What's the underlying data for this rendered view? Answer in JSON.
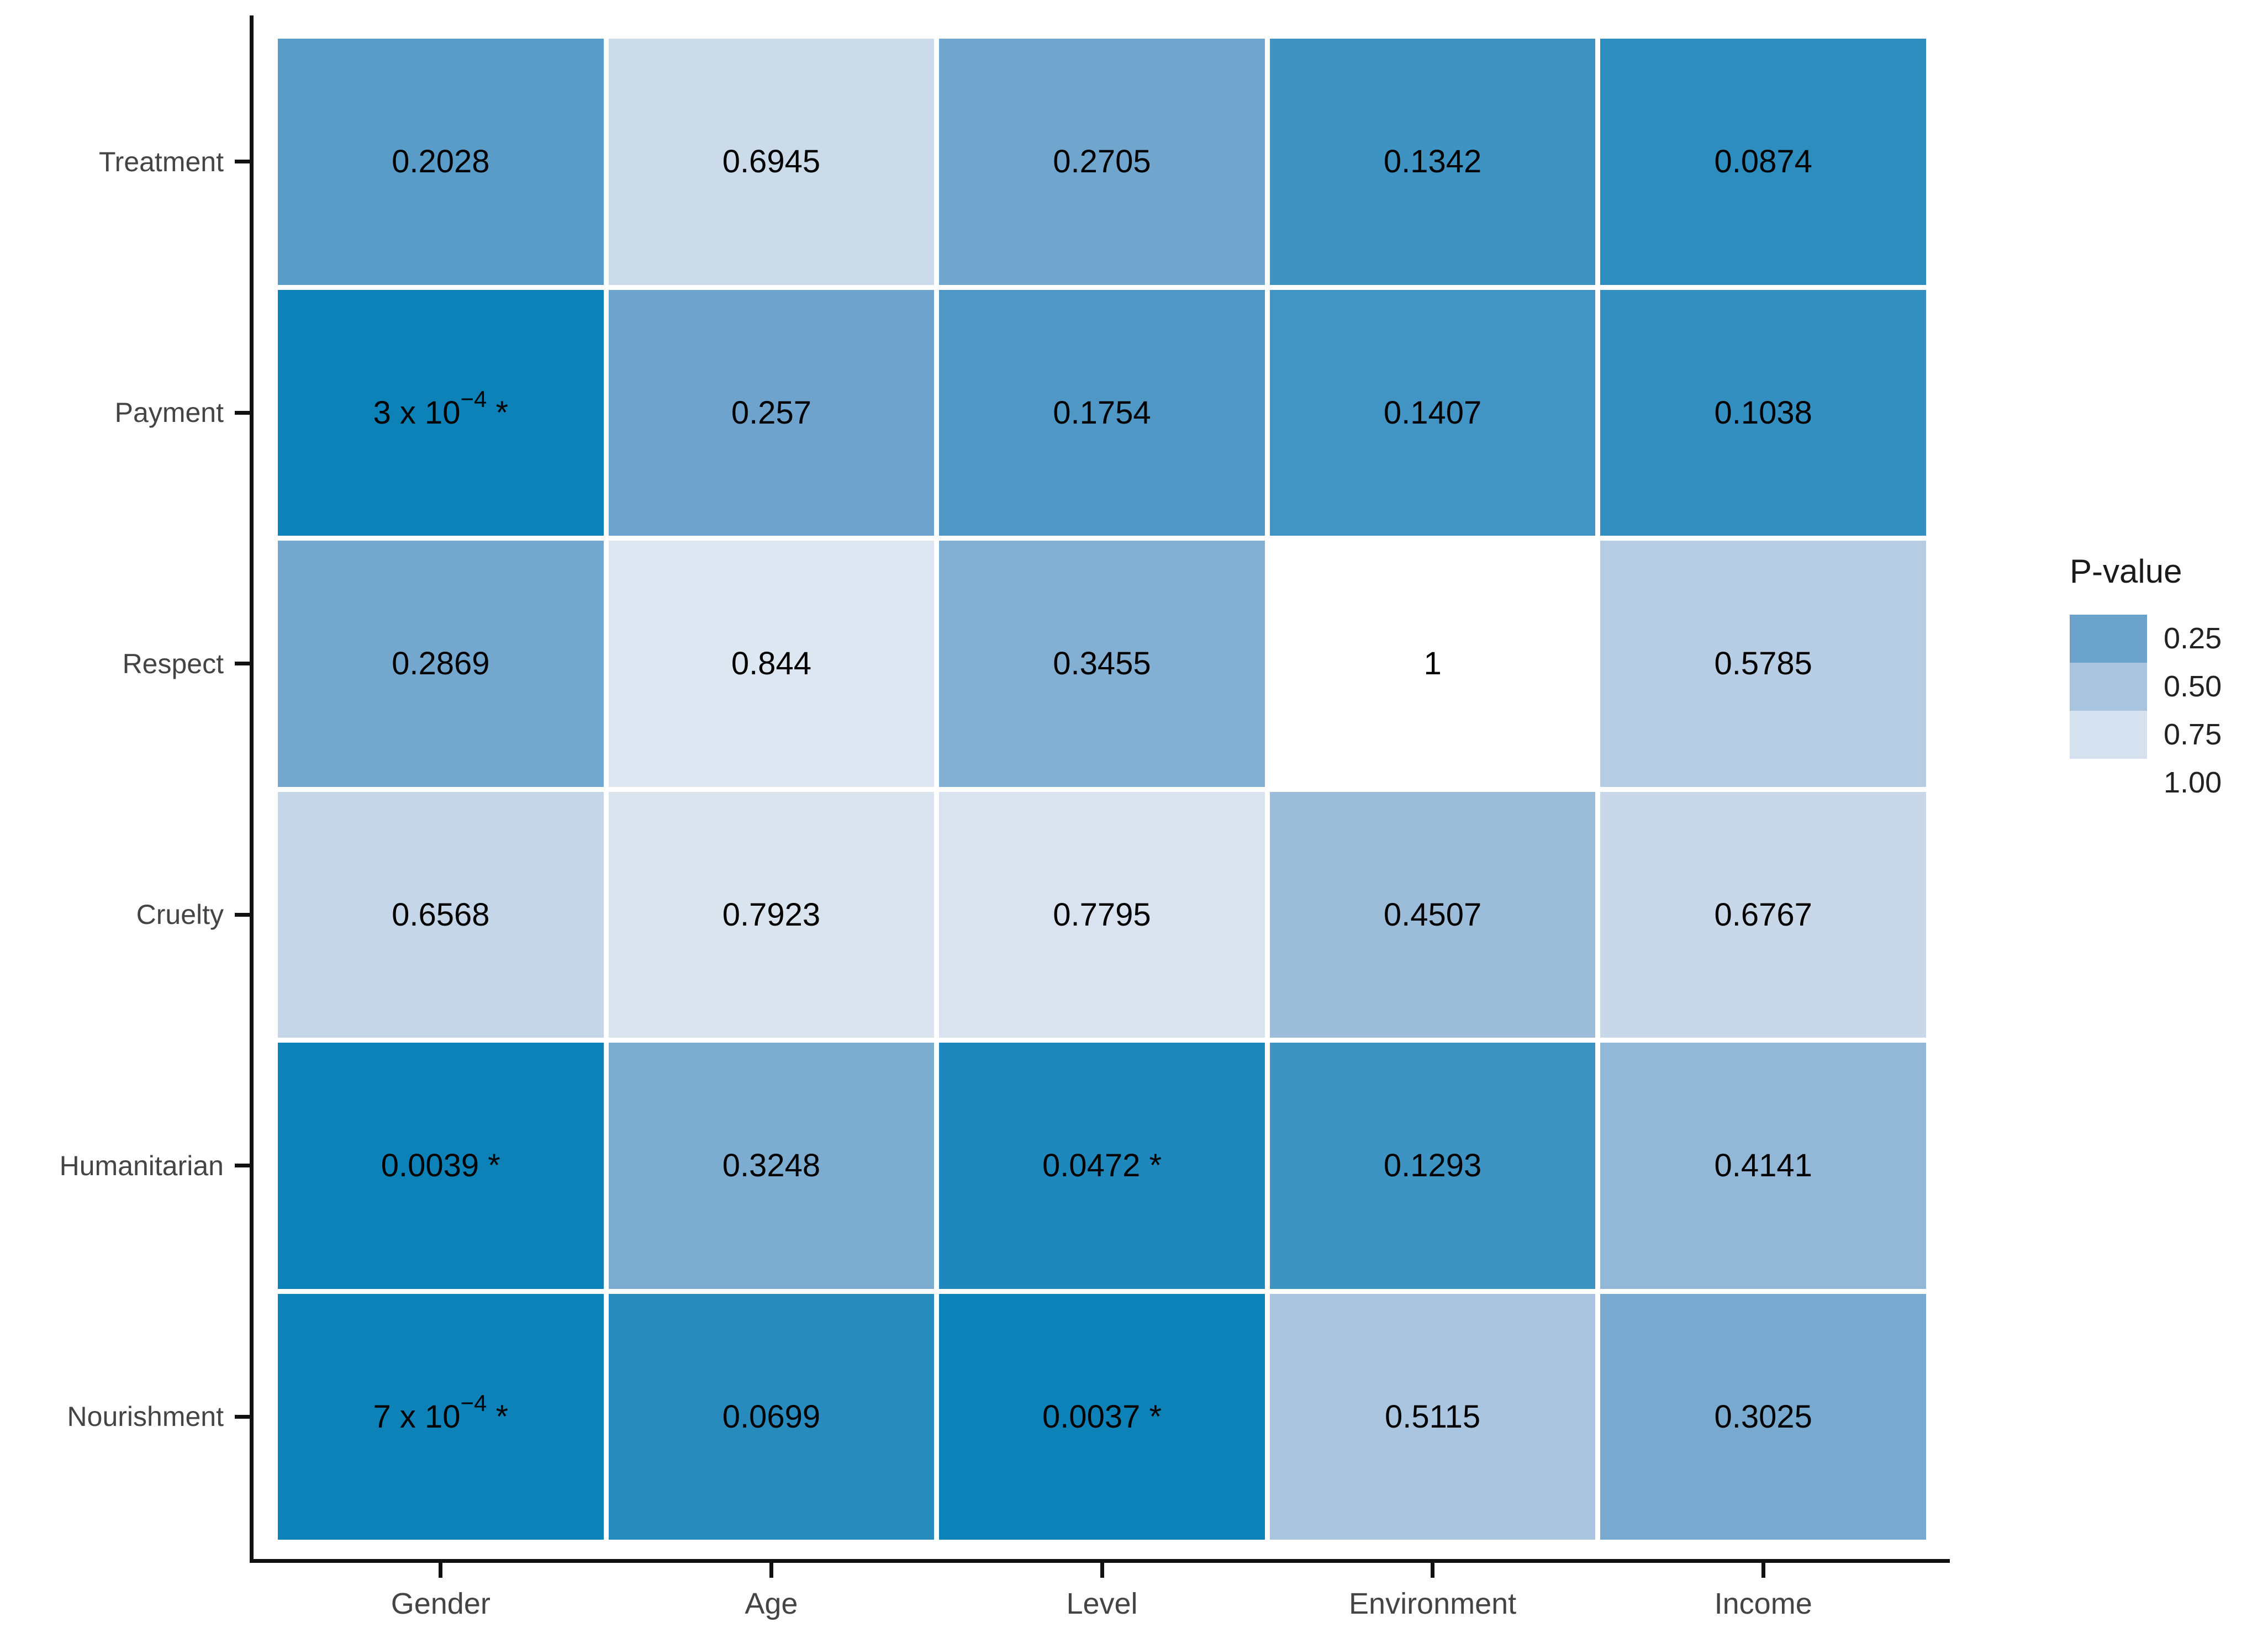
{
  "figure": {
    "background": "#ffffff",
    "axis_color": "#111111",
    "tick_label_color": "#444444",
    "cell_text_color": "#000000"
  },
  "chart_data": {
    "type": "heatmap",
    "title": "",
    "xlabel": "",
    "ylabel": "",
    "x_categories": [
      "Gender",
      "Age",
      "Level",
      "Environment",
      "Income"
    ],
    "y_categories": [
      "Treatment",
      "Payment",
      "Respect",
      "Cruelty",
      "Humanitarian",
      "Nourishment"
    ],
    "value_range": [
      0,
      1
    ],
    "rows": [
      {
        "label": "Treatment",
        "cells": [
          {
            "v": 0.2028,
            "text": "0.2028"
          },
          {
            "v": 0.6945,
            "text": "0.6945"
          },
          {
            "v": 0.2705,
            "text": "0.2705"
          },
          {
            "v": 0.1342,
            "text": "0.1342"
          },
          {
            "v": 0.0874,
            "text": "0.0874"
          }
        ]
      },
      {
        "label": "Payment",
        "cells": [
          {
            "v": 0.0003,
            "text": "3 x 10",
            "sup": "−4",
            "suffix": "*"
          },
          {
            "v": 0.257,
            "text": "0.257"
          },
          {
            "v": 0.1754,
            "text": "0.1754"
          },
          {
            "v": 0.1407,
            "text": "0.1407"
          },
          {
            "v": 0.1038,
            "text": "0.1038"
          }
        ]
      },
      {
        "label": "Respect",
        "cells": [
          {
            "v": 0.2869,
            "text": "0.2869"
          },
          {
            "v": 0.844,
            "text": "0.844"
          },
          {
            "v": 0.3455,
            "text": "0.3455"
          },
          {
            "v": 1,
            "text": "1"
          },
          {
            "v": 0.5785,
            "text": "0.5785"
          }
        ]
      },
      {
        "label": "Cruelty",
        "cells": [
          {
            "v": 0.6568,
            "text": "0.6568"
          },
          {
            "v": 0.7923,
            "text": "0.7923"
          },
          {
            "v": 0.7795,
            "text": "0.7795"
          },
          {
            "v": 0.4507,
            "text": "0.4507"
          },
          {
            "v": 0.6767,
            "text": "0.6767"
          }
        ]
      },
      {
        "label": "Humanitarian",
        "cells": [
          {
            "v": 0.0039,
            "text": "0.0039 *"
          },
          {
            "v": 0.3248,
            "text": "0.3248"
          },
          {
            "v": 0.0472,
            "text": "0.0472 *"
          },
          {
            "v": 0.1293,
            "text": "0.1293"
          },
          {
            "v": 0.4141,
            "text": "0.4141"
          }
        ]
      },
      {
        "label": "Nourishment",
        "cells": [
          {
            "v": 0.0007,
            "text": "7 x 10",
            "sup": "−4",
            "suffix": "*"
          },
          {
            "v": 0.0699,
            "text": "0.0699"
          },
          {
            "v": 0.0037,
            "text": "0.0037 *"
          },
          {
            "v": 0.5115,
            "text": "0.5115"
          },
          {
            "v": 0.3025,
            "text": "0.3025"
          }
        ]
      }
    ],
    "legend": {
      "title": "P-value",
      "ticks": [
        "0.25",
        "0.50",
        "0.75",
        "1.00"
      ],
      "tick_values": [
        0.25,
        0.5,
        0.75,
        1.0
      ],
      "position": "right"
    },
    "color_scale": {
      "stops": [
        [
          0.0,
          "#0c82b8"
        ],
        [
          0.25,
          "#6ba2cb"
        ],
        [
          0.5,
          "#a8c4de"
        ],
        [
          0.75,
          "#d5e1ee"
        ],
        [
          0.85,
          "#dee7f1"
        ],
        [
          1.0,
          "#ffffff"
        ]
      ]
    }
  }
}
